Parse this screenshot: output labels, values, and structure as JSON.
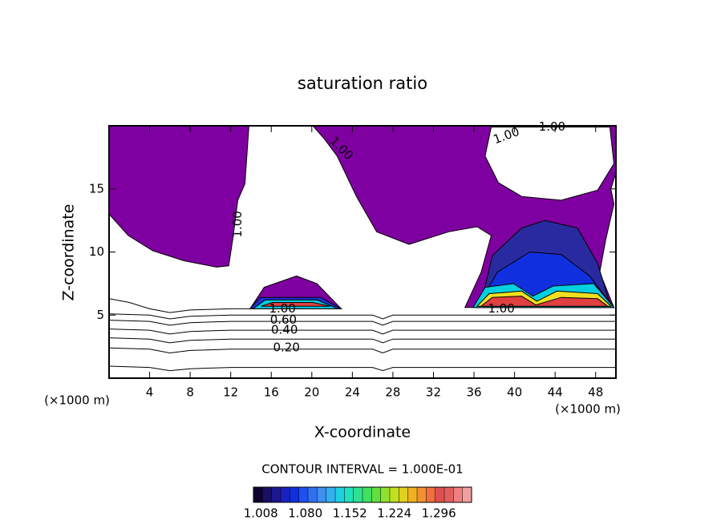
{
  "chart_data": {
    "type": "contour",
    "title": "saturation ratio",
    "xlabel": "X-coordinate",
    "ylabel": "Z-coordinate",
    "x_unit_left": "(×1000 m)",
    "x_unit_right": "(×1000 m)",
    "interval_label": "CONTOUR INTERVAL = 1.000E-01",
    "xlim": [
      0,
      50
    ],
    "ylim": [
      0,
      20
    ],
    "xticks": [
      4,
      8,
      12,
      16,
      20,
      24,
      28,
      32,
      36,
      40,
      44,
      48
    ],
    "yticks": [
      5,
      10,
      15
    ],
    "regions": [
      {
        "color": "#7f00a0",
        "x": [
          0,
          13.8,
          13.4,
          12.7,
          12.2,
          11.8,
          10.6,
          7.4,
          4.3,
          1.9,
          0
        ],
        "y": [
          20,
          20,
          15.4,
          14.1,
          11,
          8.9,
          8.8,
          9.3,
          10.1,
          11.3,
          13.0
        ]
      },
      {
        "color": "#7f00a0",
        "x": [
          20.1,
          50,
          50,
          49.5,
          49.8,
          49.0,
          48.4,
          49.8,
          35.1,
          36.7,
          37.7,
          36.3,
          33.5,
          29.6,
          26.4,
          24.4,
          22.5,
          21.3
        ],
        "y": [
          20,
          20,
          16.3,
          15.0,
          13.8,
          11.0,
          8.4,
          5.6,
          5.6,
          8.4,
          11.3,
          12.0,
          11.6,
          10.6,
          11.6,
          14.4,
          17.6,
          18.9
        ]
      },
      {
        "color": "#ffffff",
        "x": [
          37.7,
          49.4,
          49.8,
          48.2,
          44.6,
          40.7,
          38.4,
          37.1
        ],
        "y": [
          19.9,
          19.9,
          17.0,
          14.9,
          14.1,
          14.4,
          15.5,
          17.6
        ]
      },
      {
        "color": "#2a2aa0",
        "x": [
          36.7,
          37.8,
          40.7,
          43.0,
          46.2,
          48.2,
          49.4
        ],
        "y": [
          5.9,
          9.7,
          11.9,
          12.5,
          11.9,
          9.1,
          5.9
        ]
      },
      {
        "color": "#1030e0",
        "x": [
          36.3,
          38.3,
          41.5,
          44.6,
          47.4,
          49.8
        ],
        "y": [
          5.6,
          8.4,
          10.0,
          9.8,
          8.1,
          5.6
        ]
      },
      {
        "color": "#00d0e0",
        "x": [
          35.9,
          37.1,
          39.9,
          41.8,
          43.8,
          47.8,
          49.8
        ],
        "y": [
          5.6,
          7.2,
          7.5,
          6.5,
          7.3,
          7.5,
          5.6
        ]
      },
      {
        "color": "#f0e020",
        "x": [
          36.3,
          37.5,
          40.7,
          42.2,
          44.2,
          48.2,
          49.5
        ],
        "y": [
          5.7,
          6.7,
          6.9,
          6.1,
          6.9,
          6.7,
          5.7
        ]
      },
      {
        "color": "#e04040",
        "x": [
          36.7,
          37.8,
          40.7,
          42.1,
          44.6,
          48.2,
          49.2
        ],
        "y": [
          5.7,
          6.4,
          6.5,
          5.8,
          6.4,
          6.3,
          5.7
        ]
      },
      {
        "color": "#7f00a0",
        "x": [
          13.9,
          15.3,
          18.5,
          20.5,
          22.9
        ],
        "y": [
          5.5,
          7.2,
          8.1,
          7.5,
          5.5
        ]
      },
      {
        "color": "#2030d0",
        "x": [
          13.9,
          14.9,
          20.9,
          22.9
        ],
        "y": [
          5.5,
          6.4,
          6.4,
          5.5
        ]
      },
      {
        "color": "#00d0e0",
        "x": [
          14.2,
          15.4,
          20.5,
          22.6
        ],
        "y": [
          5.5,
          6.2,
          6.2,
          5.5
        ]
      },
      {
        "color": "#e04040",
        "x": [
          15.0,
          16.1,
          20.1,
          21.8
        ],
        "y": [
          5.7,
          6.0,
          6.0,
          5.7
        ]
      }
    ],
    "contours": [
      {
        "x": [
          0,
          4,
          6,
          8,
          12,
          20,
          26,
          27,
          28,
          32,
          40,
          50
        ],
        "y": [
          0.95,
          0.85,
          0.6,
          0.75,
          0.85,
          0.85,
          0.85,
          0.6,
          0.85,
          0.85,
          0.85,
          0.85
        ]
      },
      {
        "x": [
          0,
          4,
          6,
          8,
          12,
          20,
          26,
          27,
          28,
          32,
          40,
          50
        ],
        "y": [
          2.4,
          2.3,
          2.0,
          2.2,
          2.3,
          2.3,
          2.3,
          2.0,
          2.3,
          2.3,
          2.3,
          2.3
        ]
      },
      {
        "x": [
          0,
          4,
          6,
          8,
          12,
          20,
          26,
          27,
          28,
          32,
          40,
          50
        ],
        "y": [
          3.2,
          3.1,
          2.8,
          3.0,
          3.1,
          3.1,
          3.1,
          2.8,
          3.1,
          3.1,
          3.1,
          3.1
        ]
      },
      {
        "x": [
          0,
          4,
          6,
          8,
          12,
          20,
          26,
          27,
          28,
          32,
          40,
          50
        ],
        "y": [
          3.9,
          3.8,
          3.5,
          3.7,
          3.8,
          3.8,
          3.8,
          3.5,
          3.8,
          3.8,
          3.8,
          3.8
        ]
      },
      {
        "x": [
          0,
          4,
          6,
          8,
          12,
          20,
          26,
          27,
          28,
          32,
          40,
          50
        ],
        "y": [
          4.6,
          4.5,
          4.2,
          4.4,
          4.5,
          4.5,
          4.5,
          4.2,
          4.5,
          4.5,
          4.5,
          4.5
        ]
      },
      {
        "x": [
          0,
          4,
          6,
          8,
          12,
          20,
          26,
          27,
          28,
          32,
          40,
          50
        ],
        "y": [
          5.1,
          5.0,
          4.7,
          4.9,
          5.0,
          5.0,
          5.0,
          4.7,
          5.0,
          5.0,
          5.0,
          5.0
        ]
      },
      {
        "x": [
          0,
          2,
          4,
          6,
          8,
          12,
          14
        ],
        "y": [
          6.3,
          6.0,
          5.5,
          5.2,
          5.4,
          5.5,
          5.5
        ]
      }
    ],
    "contour_labels": [
      {
        "text": "0.20",
        "x": 17.5,
        "y": 2.4
      },
      {
        "text": "0.40",
        "x": 17.3,
        "y": 3.8
      },
      {
        "text": "0.60",
        "x": 17.2,
        "y": 4.6
      },
      {
        "text": "1.00",
        "x": 17.1,
        "y": 5.5
      },
      {
        "text": "1.00",
        "x": 38.7,
        "y": 5.5
      },
      {
        "text": "1.00",
        "x": 12.7,
        "y": 12.2
      },
      {
        "text": "1.00",
        "x": 22.9,
        "y": 18.2
      },
      {
        "text": "1.00",
        "x": 39.2,
        "y": 19.2
      },
      {
        "text": "1.00",
        "x": 43.7,
        "y": 19.9
      }
    ],
    "colorbar": {
      "lim": [
        0.996,
        1.349
      ],
      "ticks": [
        1.008,
        {
          "value": 1.08,
          "label": "1.080"
        },
        1.152,
        1.224,
        1.296
      ],
      "colors": [
        "#100030",
        "#1a1060",
        "#1c1890",
        "#1a20c0",
        "#1030e0",
        "#2050f0",
        "#3070f0",
        "#4090f0",
        "#30b0f0",
        "#20d0e0",
        "#20e0c0",
        "#30e090",
        "#40e060",
        "#60e040",
        "#90e030",
        "#c0e020",
        "#e0d020",
        "#f0b020",
        "#f09030",
        "#f07040",
        "#e05050",
        "#e06060",
        "#f08080",
        "#f0a0a0"
      ]
    }
  }
}
